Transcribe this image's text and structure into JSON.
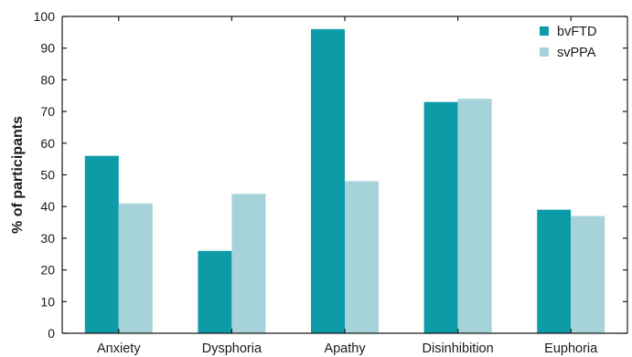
{
  "chart_data": {
    "type": "bar",
    "title": "",
    "xlabel": "",
    "ylabel": "% of participants",
    "ylim": [
      0,
      100
    ],
    "yticks": [
      0,
      10,
      20,
      30,
      40,
      50,
      60,
      70,
      80,
      90,
      100
    ],
    "grid": false,
    "legend_position": "top-right",
    "categories": [
      "Anxiety",
      "Dysphoria",
      "Apathy",
      "Disinhibition",
      "Euphoria"
    ],
    "series": [
      {
        "name": "bvFTD",
        "color": "#0e9ba8",
        "values": [
          56,
          26,
          96,
          73,
          39
        ]
      },
      {
        "name": "svPPA",
        "color": "#a6d3d9",
        "values": [
          41,
          44,
          48,
          74,
          37
        ]
      }
    ]
  }
}
